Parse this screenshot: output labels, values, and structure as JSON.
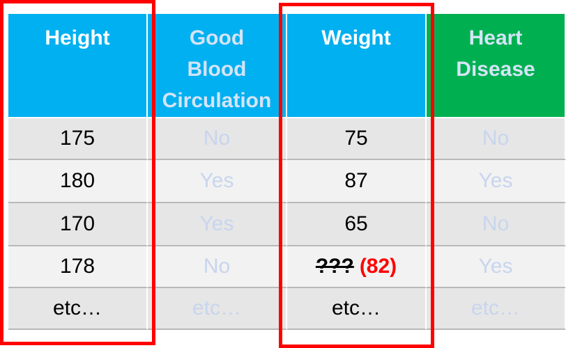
{
  "headers": [
    "Height",
    "Good Blood Circulation",
    "Weight",
    "Heart Disease"
  ],
  "rows": [
    [
      "175",
      "No",
      "75",
      "No"
    ],
    [
      "180",
      "Yes",
      "87",
      "Yes"
    ],
    [
      "170",
      "Yes",
      "65",
      "No"
    ],
    [
      "178",
      "No",
      "???",
      "Yes"
    ],
    [
      "etc…",
      "etc…",
      "etc…",
      "etc…"
    ]
  ],
  "missing_weight_estimate": "(82)",
  "highlighted_columns": [
    "Height",
    "Weight"
  ],
  "colors": {
    "header_blue": "#00b0f0",
    "header_green": "#00b050",
    "highlight_red": "#ff0000",
    "correction_red": "#ff0000"
  }
}
